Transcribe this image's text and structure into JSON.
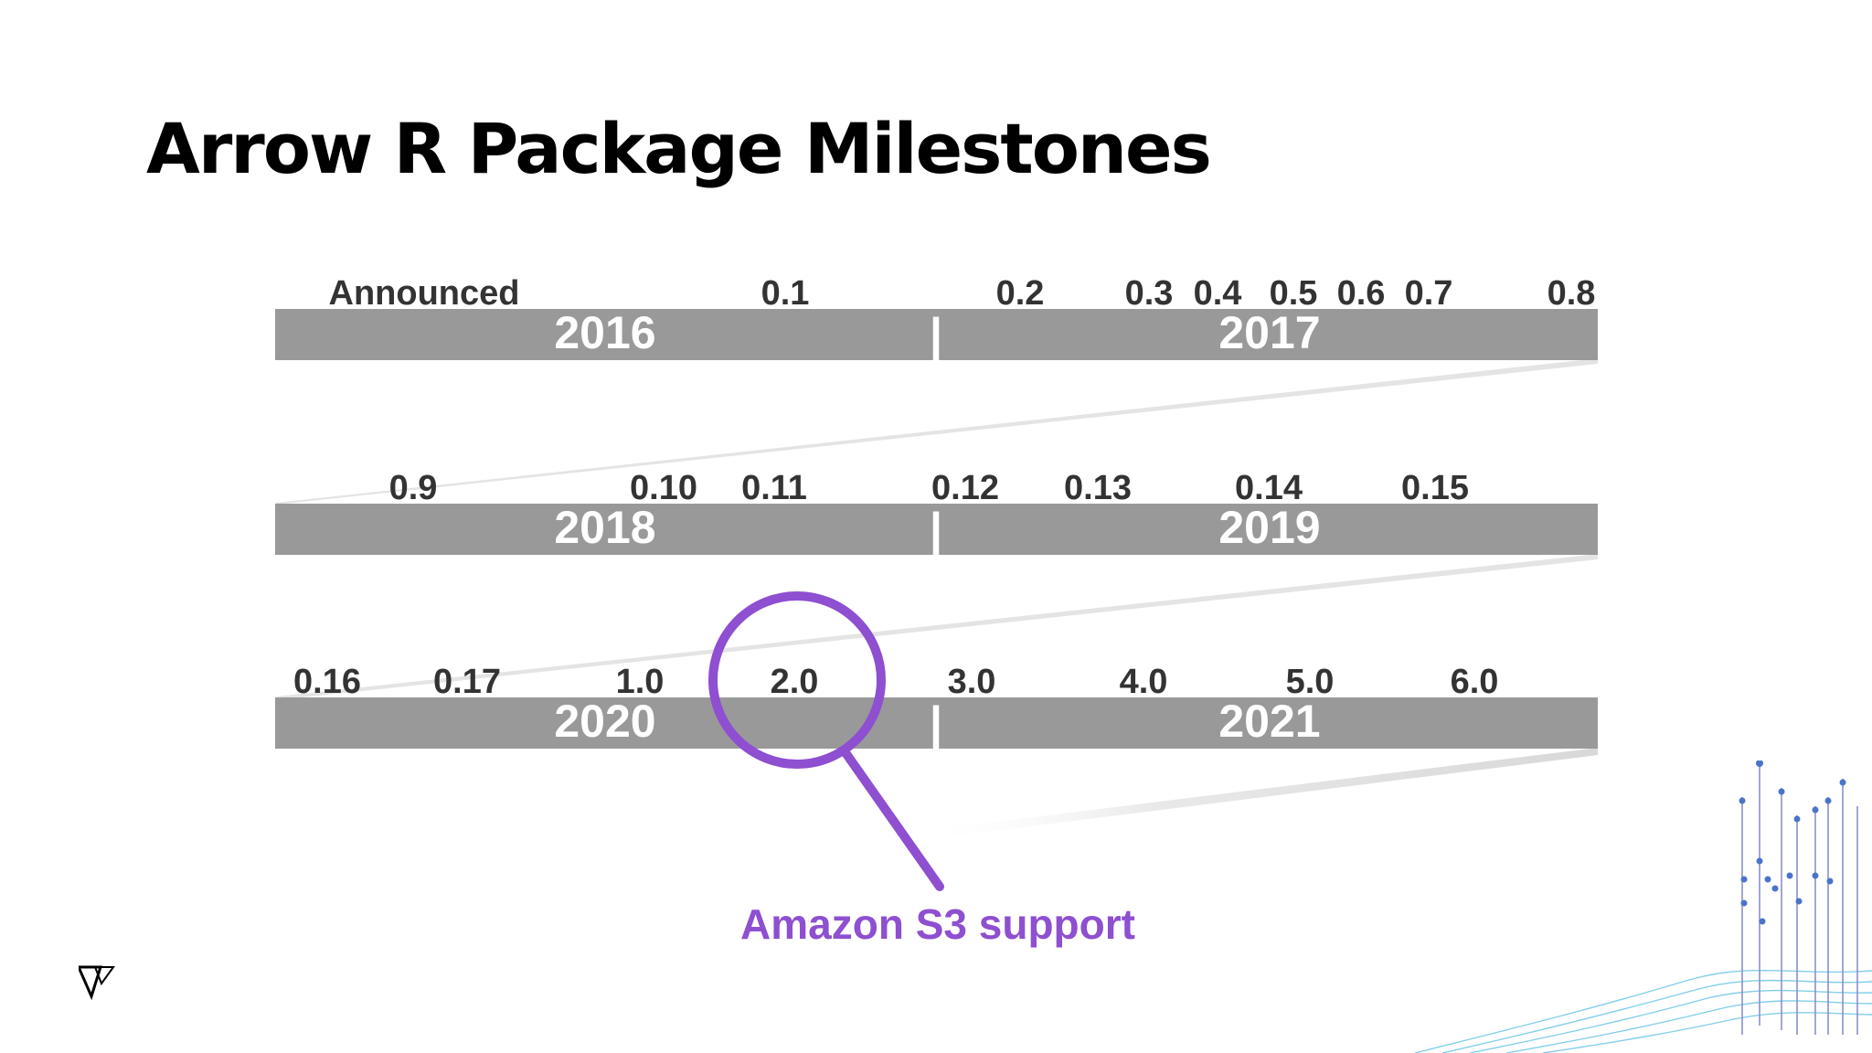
{
  "title": "Arrow R Package Milestones",
  "divider_glyph": "|",
  "rows": [
    {
      "years": [
        "2016",
        "2017"
      ],
      "milestones": [
        "Announced",
        "0.1",
        "0.2",
        "0.3",
        "0.4",
        "0.5",
        "0.6",
        "0.7",
        "0.8"
      ]
    },
    {
      "years": [
        "2018",
        "2019"
      ],
      "milestones": [
        "0.9",
        "0.10",
        "0.11",
        "0.12",
        "0.13",
        "0.14",
        "0.15"
      ]
    },
    {
      "years": [
        "2020",
        "2021"
      ],
      "milestones": [
        "0.16",
        "0.17",
        "1.0",
        "2.0",
        "3.0",
        "4.0",
        "5.0",
        "6.0"
      ]
    }
  ],
  "callout": {
    "milestone": "2.0",
    "label": "Amazon S3 support",
    "icon": "magnifier-icon",
    "color": "#8e4fd0"
  },
  "colors": {
    "bar": "#999999",
    "bar_text": "#ffffff",
    "milestone_text": "#333333",
    "connector": "#e6e6e6"
  },
  "logo_icon": "voltron-logo-icon",
  "decoration_icon": "data-waves-icon"
}
